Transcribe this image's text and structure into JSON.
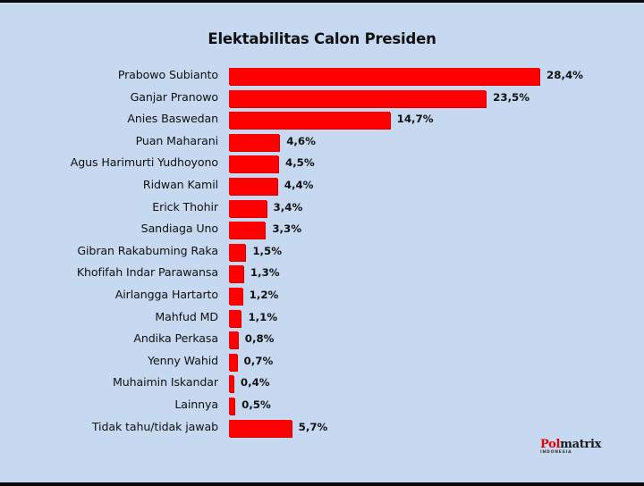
{
  "title": "Elektabilitas Calon Presiden",
  "logo": {
    "part1": "Pol",
    "part2": "matrix",
    "sub": "INDONESIA"
  },
  "chart_data": {
    "type": "bar",
    "orientation": "horizontal",
    "title": "Elektabilitas Calon Presiden",
    "xlabel": "",
    "ylabel": "",
    "grid": false,
    "legend": null,
    "bar_color": "#ff0000",
    "background": "#c6d9f0",
    "categories": [
      "Prabowo Subianto",
      "Ganjar Pranowo",
      "Anies Baswedan",
      "Puan Maharani",
      "Agus Harimurti Yudhoyono",
      "Ridwan Kamil",
      "Erick Thohir",
      "Sandiaga Uno",
      "Gibran Rakabuming Raka",
      "Khofifah Indar Parawansa",
      "Airlangga Hartarto",
      "Mahfud MD",
      "Andika Perkasa",
      "Yenny Wahid",
      "Muhaimin Iskandar",
      "Lainnya",
      "Tidak tahu/tidak jawab"
    ],
    "values": [
      28.4,
      23.5,
      14.7,
      4.6,
      4.5,
      4.4,
      3.4,
      3.3,
      1.5,
      1.3,
      1.2,
      1.1,
      0.8,
      0.7,
      0.4,
      0.5,
      5.7
    ],
    "value_labels": [
      "28,4%",
      "23,5%",
      "14,7%",
      "4,6%",
      "4,5%",
      "4,4%",
      "3,4%",
      "3,3%",
      "1,5%",
      "1,3%",
      "1,2%",
      "1,1%",
      "0,8%",
      "0,7%",
      "0,4%",
      "0,5%",
      "5,7%"
    ],
    "source": "Polmatrix Indonesia"
  }
}
